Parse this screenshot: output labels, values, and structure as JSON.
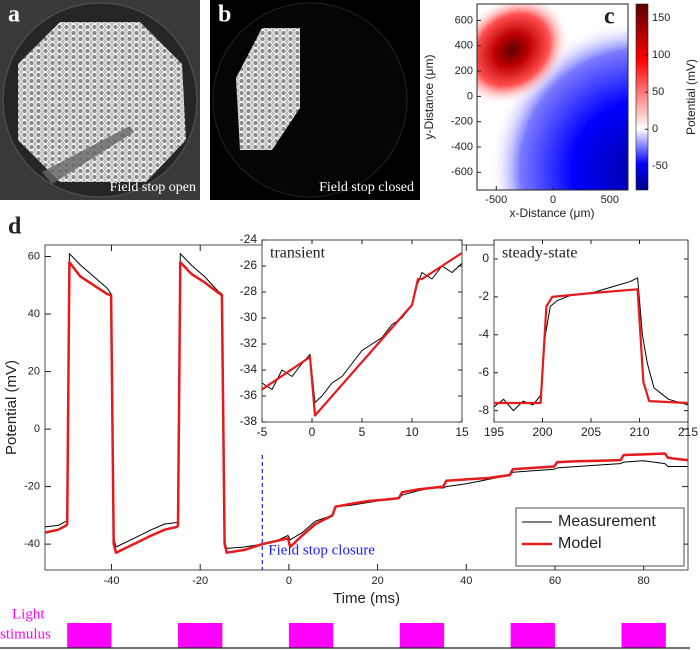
{
  "panels": {
    "a": {
      "label": "a",
      "caption": "Field stop open"
    },
    "b": {
      "label": "b",
      "caption": "Field stop closed"
    },
    "d": {
      "label": "d"
    }
  },
  "heatmap": {
    "label": "c",
    "xlabel": "x-Distance (μm)",
    "ylabel": "y-Distance (μm)",
    "xlim": [
      -670,
      660
    ],
    "ylim": [
      -740,
      730
    ],
    "xticks": [
      -500,
      0,
      500
    ],
    "yticks": [
      -600,
      -400,
      -200,
      0,
      200,
      400,
      600
    ],
    "colorbar": {
      "label": "Potential (mV)",
      "lim": [
        -82,
        169
      ],
      "ticks": [
        -50,
        0,
        50,
        100,
        150
      ]
    }
  },
  "stimulus": {
    "label": [
      "Light",
      "stimulus"
    ],
    "color": "#ff00ff",
    "on": [
      -50,
      -25,
      0,
      25,
      50,
      75
    ],
    "off": [
      -40,
      -15,
      10,
      35,
      60,
      85
    ]
  },
  "chart_data": [
    {
      "type": "line",
      "xlabel": "Time (ms)",
      "ylabel": "Potential (mV)",
      "xlim": [
        -55,
        90
      ],
      "ylim": [
        -49,
        64
      ],
      "xticks": [
        -40,
        -20,
        0,
        20,
        40,
        60,
        80
      ],
      "yticks": [
        -40,
        -20,
        0,
        20,
        40,
        60
      ],
      "legend": "lower right",
      "annotations": [
        {
          "text": "Field stop closure",
          "x": -6,
          "color": "#1a1aff"
        }
      ],
      "series": [
        {
          "name": "Measurement",
          "color": "#000000",
          "x": [
            -55,
            -52,
            -50.2,
            -50,
            -49.5,
            -47,
            -44,
            -41,
            -40.1,
            -39.5,
            -39,
            -35,
            -31,
            -28,
            -25.2,
            -25,
            -24.5,
            -22,
            -19,
            -16,
            -15.1,
            -14.5,
            -14,
            -10,
            -6,
            -3,
            -0.2,
            0.3,
            3,
            6,
            9.8,
            10.5,
            14,
            18,
            22,
            24.8,
            25.5,
            29,
            32,
            34.8,
            35.5,
            40,
            45,
            49.8,
            50.5,
            55,
            59.8,
            60.5,
            65,
            70,
            74.8,
            75.5,
            80,
            84.8,
            85.5,
            88,
            90
          ],
          "values": [
            -34,
            -33.5,
            -32,
            -32,
            61,
            57,
            53,
            49,
            47,
            -38,
            -41,
            -38,
            -35,
            -33,
            -32.5,
            -32,
            61,
            57,
            53,
            48,
            47,
            -39,
            -41.5,
            -41,
            -40,
            -39,
            -37,
            -38.5,
            -36,
            -32,
            -30,
            -27,
            -26.5,
            -25.5,
            -24.5,
            -24,
            -23,
            -21.5,
            -20.5,
            -20.5,
            -20,
            -19,
            -17.5,
            -16,
            -15,
            -14.5,
            -14,
            -13.5,
            -13,
            -12.5,
            -12,
            -11.5,
            -11,
            -12,
            -13,
            -13,
            -13
          ]
        },
        {
          "name": "Model",
          "color": "#e41a1c",
          "x": [
            -55,
            -52,
            -50.2,
            -50,
            -49.5,
            -47,
            -44,
            -41,
            -40.1,
            -39.5,
            -39,
            -35,
            -31,
            -28,
            -25.2,
            -25,
            -24.5,
            -22,
            -19,
            -16,
            -15.1,
            -14.5,
            -14,
            -10,
            -6,
            -3,
            -0.2,
            0.3,
            3,
            6,
            9.8,
            10.5,
            14,
            18,
            22,
            24.8,
            25.5,
            29,
            32,
            34.8,
            35.5,
            40,
            45,
            49.8,
            50.5,
            55,
            59.8,
            60.5,
            65,
            70,
            74.8,
            75.5,
            80,
            84.8,
            85.5,
            88,
            90
          ],
          "values": [
            -36,
            -35,
            -33.5,
            -33,
            58,
            53,
            50,
            47,
            46.5,
            -40,
            -43,
            -40,
            -37,
            -35,
            -34,
            -33.5,
            58,
            54,
            51,
            47.5,
            46.5,
            -40,
            -43,
            -42,
            -40,
            -39,
            -38,
            -41,
            -37,
            -33,
            -30,
            -27,
            -26,
            -25,
            -24.5,
            -24,
            -22,
            -21,
            -20.5,
            -20,
            -18,
            -17.5,
            -17,
            -16,
            -14,
            -13.5,
            -13,
            -11.5,
            -11.2,
            -11,
            -10.8,
            -9,
            -8.8,
            -8.5,
            -10,
            -10.5,
            -10.8
          ]
        }
      ]
    },
    {
      "type": "line",
      "title": "transient",
      "xlim": [
        -5,
        15
      ],
      "ylim": [
        -38,
        -24
      ],
      "xticks": [
        -5,
        0,
        5,
        10,
        15
      ],
      "yticks": [
        -38,
        -36,
        -34,
        -32,
        -30,
        -28,
        -26,
        -24
      ],
      "series": [
        {
          "color": "#000000",
          "x": [
            -5,
            -4,
            -3,
            -2,
            -1,
            -0.2,
            0.3,
            1,
            2,
            3,
            4,
            5,
            6,
            7,
            8,
            9,
            10,
            10.5,
            11,
            12,
            13,
            14,
            15
          ],
          "values": [
            -35,
            -35.5,
            -34,
            -34.5,
            -33.5,
            -32.8,
            -36.5,
            -36,
            -35,
            -34.5,
            -33.5,
            -32.5,
            -32,
            -31.5,
            -30.5,
            -30,
            -29,
            -27.5,
            -26.5,
            -27,
            -26,
            -26.5,
            -25.8
          ]
        },
        {
          "color": "#e41a1c",
          "x": [
            -5,
            -0.2,
            0.3,
            10,
            10.6,
            11,
            15
          ],
          "values": [
            -35.5,
            -33,
            -37.5,
            -29,
            -27,
            -27,
            -25
          ]
        }
      ]
    },
    {
      "type": "line",
      "title": "steady-state",
      "xlim": [
        195,
        215
      ],
      "ylim": [
        -8.6,
        1
      ],
      "xticks": [
        195,
        200,
        205,
        210,
        215
      ],
      "yticks": [
        -8,
        -6,
        -4,
        -2,
        0
      ],
      "series": [
        {
          "color": "#000000",
          "x": [
            195,
            196,
            197,
            198,
            199,
            199.8,
            200.3,
            200.8,
            201.5,
            203,
            205,
            207,
            209,
            209.8,
            210.3,
            210.8,
            211.5,
            213,
            215
          ],
          "values": [
            -7.8,
            -7.4,
            -8,
            -7.5,
            -7.7,
            -7.2,
            -4,
            -2.5,
            -2.2,
            -1.9,
            -1.8,
            -1.5,
            -1.2,
            -1,
            -4,
            -5.5,
            -6.8,
            -7.4,
            -7.7
          ]
        },
        {
          "color": "#e41a1c",
          "x": [
            195,
            199.8,
            200.4,
            201,
            205,
            209.8,
            210.4,
            211,
            215
          ],
          "values": [
            -7.6,
            -7.6,
            -2.5,
            -2,
            -1.8,
            -1.6,
            -6.5,
            -7.5,
            -7.6
          ]
        }
      ]
    }
  ]
}
